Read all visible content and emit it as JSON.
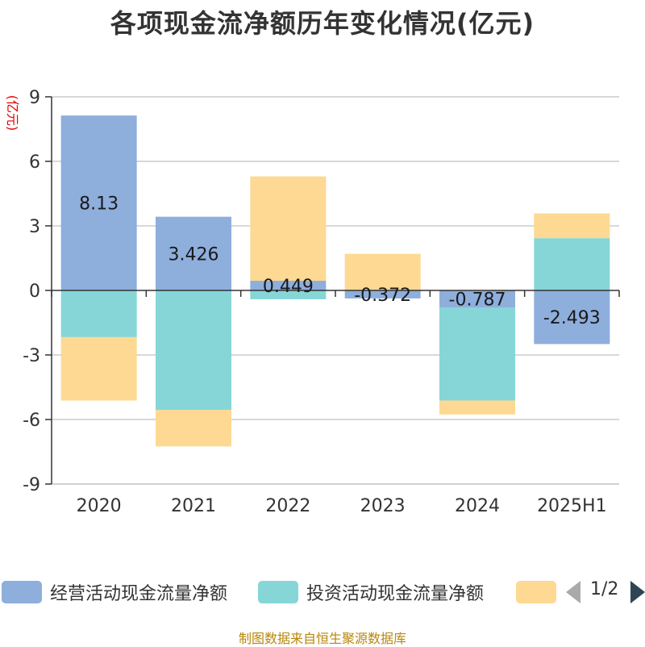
{
  "chart_data": {
    "type": "bar",
    "stacked": true,
    "title": "各项现金流净额历年变化情况(亿元)",
    "ylabel": "(亿元)",
    "categories": [
      "2020",
      "2021",
      "2022",
      "2023",
      "2024",
      "2025H1"
    ],
    "ylim": [
      -9,
      9
    ],
    "yticks": [
      9,
      6,
      3,
      0,
      -3,
      -6,
      -9
    ],
    "grid": true,
    "series": [
      {
        "name": "经营活动现金流量净额",
        "color": "#8eaedc",
        "values": [
          8.13,
          3.426,
          0.449,
          -0.372,
          -0.787,
          -2.493
        ],
        "labels": [
          "8.13",
          "3.426",
          "0.449",
          "-0.372",
          "-0.787",
          "-2.493"
        ]
      },
      {
        "name": "投资活动现金流量净额",
        "color": "#86d6d8",
        "values": [
          -2.17,
          -5.55,
          -0.41,
          0,
          -4.33,
          2.43
        ],
        "labels": []
      },
      {
        "name": "",
        "color": "#fed993",
        "values": [
          -2.95,
          -1.7,
          4.85,
          1.7,
          -0.65,
          1.15
        ],
        "labels": []
      }
    ]
  },
  "legend": {
    "page": "1/2",
    "prev_icon": "triangle-left-icon",
    "next_icon": "triangle-right-icon"
  },
  "source": "制图数据来自恒生聚源数据库"
}
